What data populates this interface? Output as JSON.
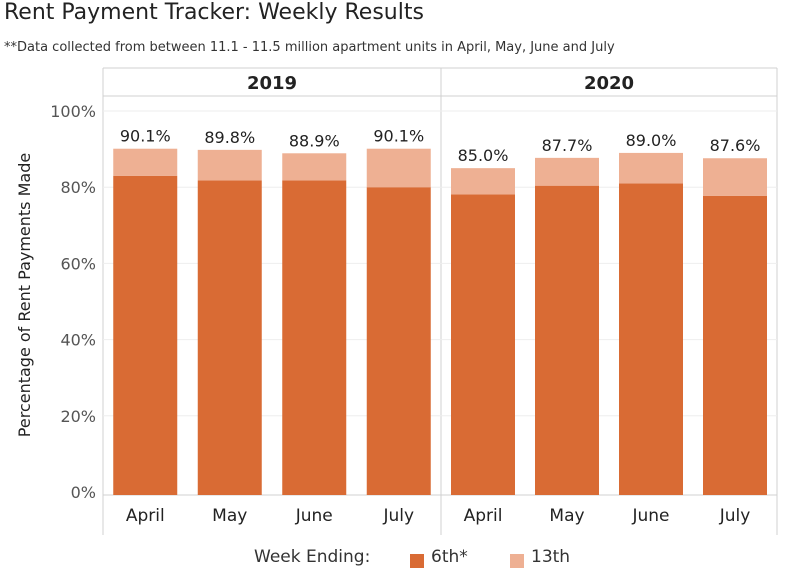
{
  "title": "Rent Payment Tracker: Weekly Results",
  "subtitle": "**Data collected from between 11.1 - 11.5 million apartment units in April, May, June and July",
  "chart_data": {
    "type": "bar",
    "stacked": true,
    "ylabel": "Percentage of Rent Payments Made",
    "xlabel": "",
    "ylim": [
      0,
      100
    ],
    "yticks": [
      "0%",
      "20%",
      "40%",
      "60%",
      "80%",
      "100%"
    ],
    "panels": [
      {
        "name": "2019",
        "categories": [
          "April",
          "May",
          "June",
          "July"
        ],
        "series": [
          {
            "name": "6th*",
            "values": [
              83.0,
              81.8,
              81.8,
              80.0
            ]
          },
          {
            "name": "13th",
            "values": [
              7.1,
              8.0,
              7.1,
              10.1
            ]
          }
        ],
        "totals": [
          "90.1%",
          "89.8%",
          "88.9%",
          "90.1%"
        ]
      },
      {
        "name": "2020",
        "categories": [
          "April",
          "May",
          "June",
          "July"
        ],
        "series": [
          {
            "name": "6th*",
            "values": [
              78.1,
              80.4,
              81.0,
              77.7
            ]
          },
          {
            "name": "13th",
            "values": [
              6.9,
              7.3,
              8.0,
              9.9
            ]
          }
        ],
        "totals": [
          "85.0%",
          "87.7%",
          "89.0%",
          "87.6%"
        ]
      }
    ],
    "colors": {
      "6th*": "#d96b34",
      "13th": "#eeb093"
    },
    "legend": {
      "title": "Week Ending:",
      "position": "bottom",
      "entries": [
        "6th*",
        "13th"
      ]
    }
  }
}
